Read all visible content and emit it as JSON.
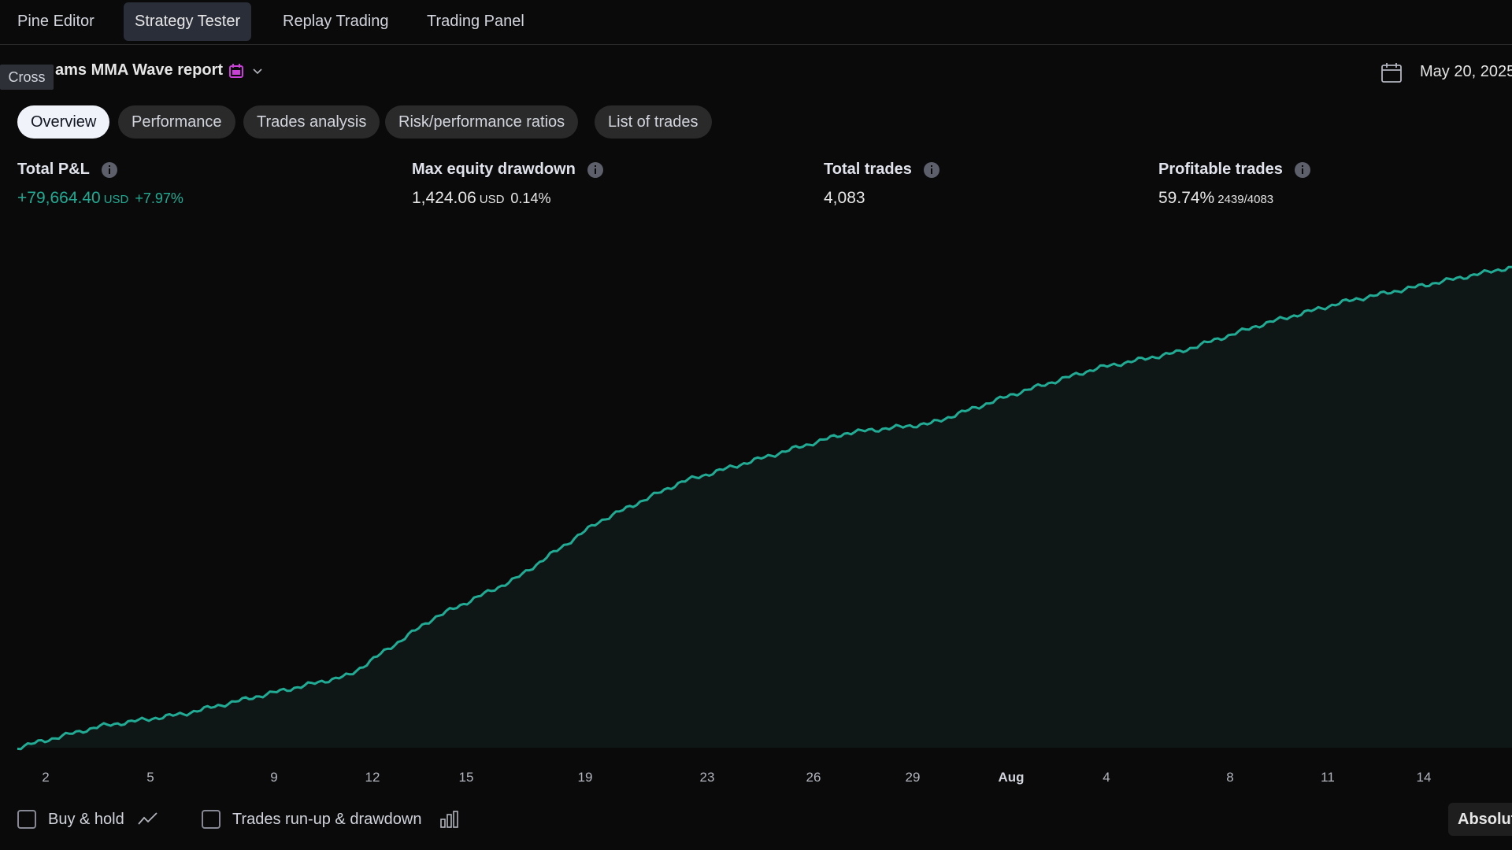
{
  "top_tabs": [
    {
      "label": "Pine Editor"
    },
    {
      "label": "Strategy Tester"
    },
    {
      "label": "Replay Trading"
    },
    {
      "label": "Trading Panel"
    }
  ],
  "tooltip": {
    "label": "Cross"
  },
  "report": {
    "title": "ams MMA Wave report",
    "flag_icon": "calendar-flag-icon",
    "date_range": "May 20, 2025"
  },
  "sub_tabs": [
    {
      "label": "Overview"
    },
    {
      "label": "Performance"
    },
    {
      "label": "Trades analysis"
    },
    {
      "label": "Risk/performance ratios"
    },
    {
      "label": "List of trades"
    }
  ],
  "stats": {
    "total_pnl": {
      "label": "Total P&L",
      "value": "+79,664.40",
      "unit": "USD",
      "pct": "+7.97%"
    },
    "max_drawdown": {
      "label": "Max equity drawdown",
      "value": "1,424.06",
      "unit": "USD",
      "pct": "0.14%"
    },
    "total_trades": {
      "label": "Total trades",
      "value": "4,083"
    },
    "profitable_trades": {
      "label": "Profitable trades",
      "value": "59.74%",
      "ratio": "2439/4083"
    }
  },
  "colors": {
    "line": "#22ab94",
    "area": "#0e1716",
    "positive": "#22ab94"
  },
  "chart_data": {
    "type": "area",
    "x_ticks": [
      "2",
      "5",
      "9",
      "12",
      "15",
      "19",
      "23",
      "26",
      "29",
      "Aug",
      "4",
      "8",
      "11",
      "14"
    ],
    "series": [
      {
        "values": [
          0,
          3500,
          5500,
          8700,
          11800,
          21000,
          27500,
          36800,
          43300,
          47300,
          51300,
          52800,
          57600,
          61800,
          64500,
          69000,
          72700,
          75500,
          78300
        ]
      }
    ]
  },
  "bottom": {
    "buy_hold": {
      "label": "Buy & hold"
    },
    "runup": {
      "label": "Trades run-up & drawdown"
    },
    "absolute": {
      "label": "Absolute"
    }
  }
}
